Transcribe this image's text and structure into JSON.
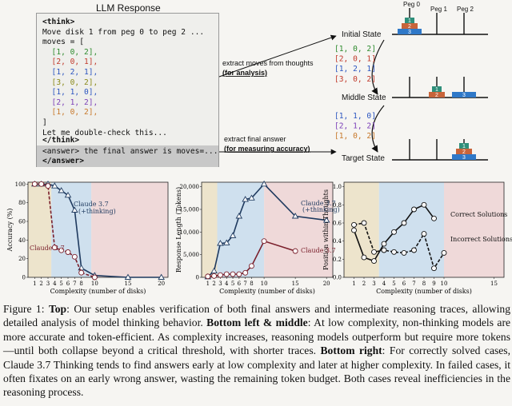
{
  "top": {
    "llm_title": "LLM Response",
    "code_lines": [
      "<think>",
      "Move disk 1 from peg 0 to peg 2 ...",
      "moves = [",
      "  [1, 0, 2],",
      "  [2, 0, 1],",
      "  [1, 2, 1],",
      "  [3, 0, 2],",
      "  [1, 1, 0],",
      "  [2, 1, 2],",
      "  [1, 0, 2],",
      "]",
      "Let me double-check this...",
      "</think>"
    ],
    "answer_line1": "<answer> the final answer is moves=...",
    "answer_line2": "</answer>",
    "arrow1_label1": "extract moves  from thoughts",
    "arrow1_label2": "(for analysis)",
    "arrow2_label1": "extract final answer",
    "arrow2_label2": "(for measuring accuracy)",
    "moves_first": [
      "[1, 0, 2]",
      "[2, 0, 1]",
      "[1, 2, 1]",
      "[3, 0, 2]"
    ],
    "moves_second": [
      "[1, 1, 0]",
      "[2, 1, 2]",
      "[1, 0, 2]"
    ],
    "states": [
      "Initial State",
      "Middle State",
      "Target State"
    ],
    "pegs": [
      "Peg 0",
      "Peg 1",
      "Peg 2"
    ],
    "disk_labels": [
      "1",
      "2",
      "3"
    ],
    "colors": {
      "disk1": "#2f8f7a",
      "disk2": "#c8643a",
      "disk3": "#2f78c8"
    }
  },
  "chart_data": [
    {
      "type": "line",
      "title": "",
      "xlabel": "Complexity (number of disks)",
      "ylabel": "Accuracy (%)",
      "x_ticks": [
        1,
        2,
        3,
        4,
        5,
        6,
        7,
        8,
        10,
        15,
        20
      ],
      "y_ticks": [
        0,
        20,
        40,
        60,
        80,
        100
      ],
      "xlim": [
        0,
        21
      ],
      "ylim": [
        0,
        102
      ],
      "series": [
        {
          "name": "Claude 3.7 (+thinking)",
          "marker": "triangle",
          "color": "#1f3a5f",
          "style": "solid",
          "x": [
            1,
            2,
            3,
            4,
            5,
            6,
            7,
            8,
            10,
            15,
            20
          ],
          "y": [
            100,
            100,
            100,
            98,
            93,
            88,
            72,
            10,
            2,
            0,
            0
          ]
        },
        {
          "name": "Claude 3.7",
          "marker": "circle",
          "color": "#7a1f2b",
          "style": "dashed",
          "x": [
            1,
            2,
            3,
            4,
            5,
            6,
            7,
            8,
            10
          ],
          "y": [
            100,
            100,
            98,
            32,
            29,
            27,
            22,
            5,
            0
          ]
        }
      ],
      "legend_labels": [
        "Claude 3.7",
        "(+thinking)",
        "Claude 3.7"
      ]
    },
    {
      "type": "line",
      "xlabel": "Complexity (number of disks)",
      "ylabel": "Response Length (Tokens)",
      "x_ticks": [
        1,
        2,
        3,
        4,
        5,
        6,
        7,
        8,
        10,
        15,
        20
      ],
      "y_ticks": [
        0,
        5000,
        10000,
        15000,
        20000
      ],
      "y_tick_labels": [
        "0",
        "5,000",
        "10,000",
        "15,000",
        "20,000"
      ],
      "xlim": [
        0,
        21
      ],
      "ylim": [
        0,
        21000
      ],
      "series": [
        {
          "name": "Claude 3.7 (+thinking)",
          "marker": "triangle",
          "color": "#1f3a5f",
          "style": "solid",
          "x": [
            1,
            2,
            3,
            4,
            5,
            6,
            7,
            8,
            10,
            15,
            20
          ],
          "y": [
            100,
            1400,
            7500,
            7600,
            9200,
            13500,
            17200,
            17500,
            20600,
            13500,
            12600
          ]
        },
        {
          "name": "Claude 3.7",
          "marker": "circle",
          "color": "#7a1f2b",
          "style": "solid",
          "x": [
            1,
            2,
            3,
            4,
            5,
            6,
            7,
            8,
            10,
            15
          ],
          "y": [
            200,
            300,
            500,
            700,
            700,
            700,
            1000,
            2500,
            8000,
            5800
          ]
        }
      ],
      "legend_labels": [
        "Claude 3.7",
        "(+thinking)",
        "Claude 3.7"
      ]
    },
    {
      "type": "line",
      "xlabel": "Complexity (number of disks)",
      "ylabel": "Position within Thoughts",
      "x_ticks": [
        1,
        2,
        3,
        4,
        5,
        6,
        7,
        8,
        9,
        10,
        15
      ],
      "y_ticks": [
        0.0,
        0.2,
        0.4,
        0.6,
        0.8,
        1.0
      ],
      "xlim": [
        0,
        16
      ],
      "ylim": [
        0,
        1.05
      ],
      "series": [
        {
          "name": "Correct Solutions",
          "marker": "circle",
          "color": "#111111",
          "style": "solid",
          "x": [
            1,
            2,
            3,
            4,
            5,
            6,
            7,
            8,
            9
          ],
          "y": [
            0.52,
            0.22,
            0.18,
            0.37,
            0.5,
            0.6,
            0.75,
            0.8,
            0.65
          ]
        },
        {
          "name": "Incorrect Solutions",
          "marker": "circle",
          "color": "#111111",
          "style": "dashed",
          "x": [
            1,
            2,
            3,
            4,
            5,
            6,
            7,
            8,
            9,
            10
          ],
          "y": [
            0.58,
            0.6,
            0.28,
            0.3,
            0.28,
            0.27,
            0.3,
            0.48,
            0.1,
            0.27
          ]
        }
      ],
      "legend_labels": [
        "Correct Solutions",
        "Incorrect Solutions"
      ]
    }
  ],
  "caption": {
    "fig": "Figure 1:",
    "top": "Top",
    "t1": ": Our setup enables verification of both final answers and intermediate reasoning traces, allowing detailed analysis of model thinking behavior. ",
    "bottom_lm": "Bottom left & middle",
    "t2": ": At low complexity, non-thinking models are more accurate and token-efficient. As complexity increases, reasoning models outperform but require more tokens—until both collapse beyond a critical threshold, with shorter traces. ",
    "bottom_r": "Bottom right",
    "t3": ": For correctly solved cases, Claude 3.7 Thinking tends to find answers early at low complexity and later at higher complexity. In failed cases, it often fixates on an early wrong answer, wasting the remaining token budget. Both cases reveal inefficiencies in the reasoning process."
  }
}
